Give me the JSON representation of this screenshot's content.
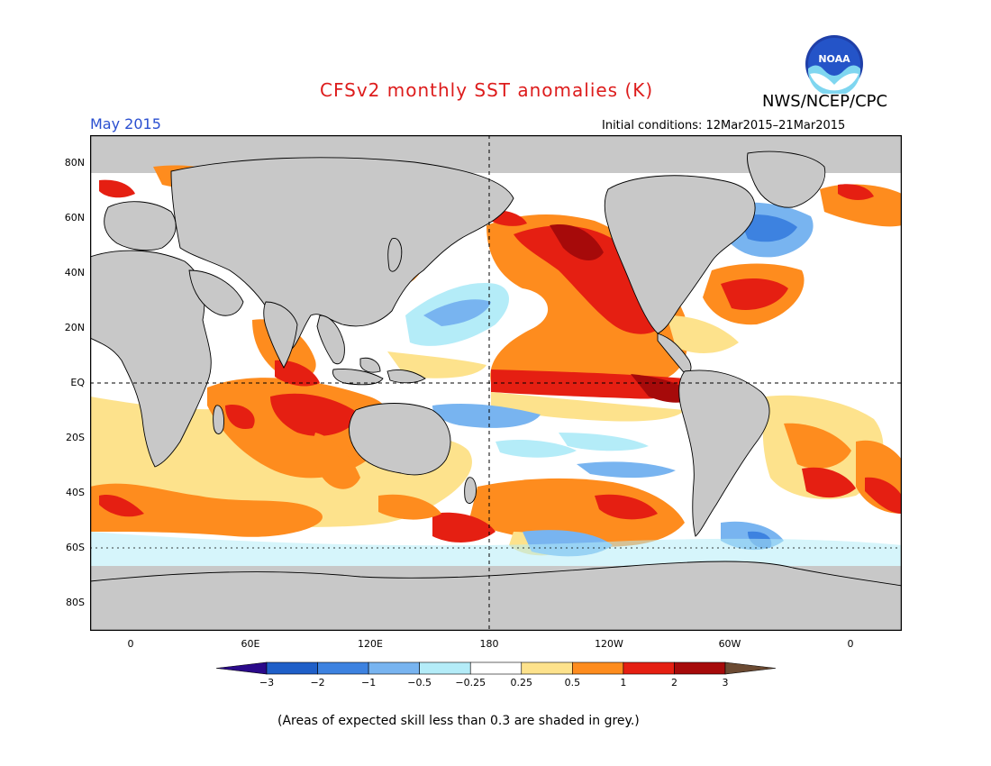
{
  "title": "CFSv2 monthly SST anomalies (K)",
  "org": "NWS/NCEP/CPC",
  "logo_text": "NOAA",
  "month": "May 2015",
  "initial_conditions": "Initial conditions: 12Mar2015–21Mar2015",
  "note": "(Areas of expected skill less than 0.3 are shaded in grey.)",
  "lat_labels": [
    "80N",
    "60N",
    "40N",
    "20N",
    "EQ",
    "20S",
    "40S",
    "60S",
    "80S"
  ],
  "lon_labels": [
    "0",
    "60E",
    "120E",
    "180",
    "120W",
    "60W",
    "0"
  ],
  "colorbar": {
    "ticks": [
      "−3",
      "−2",
      "−1",
      "−0.5",
      "−0.25",
      "0.25",
      "0.5",
      "1",
      "2",
      "3"
    ],
    "colors": [
      "#2b0a8a",
      "#1f5fc8",
      "#3d82e0",
      "#78b4f0",
      "#b4ecf8",
      "#ffffff",
      "#fde28c",
      "#fe8c1e",
      "#e51f12",
      "#a60a0a",
      "#6b4a32"
    ]
  },
  "colors": {
    "land": "#c8c8c8",
    "skill_grey": "#c8c8c8",
    "ocean_neutral": "#ffffff",
    "title_red": "#dd1c1c",
    "month_blue": "#2a4fd0"
  }
}
